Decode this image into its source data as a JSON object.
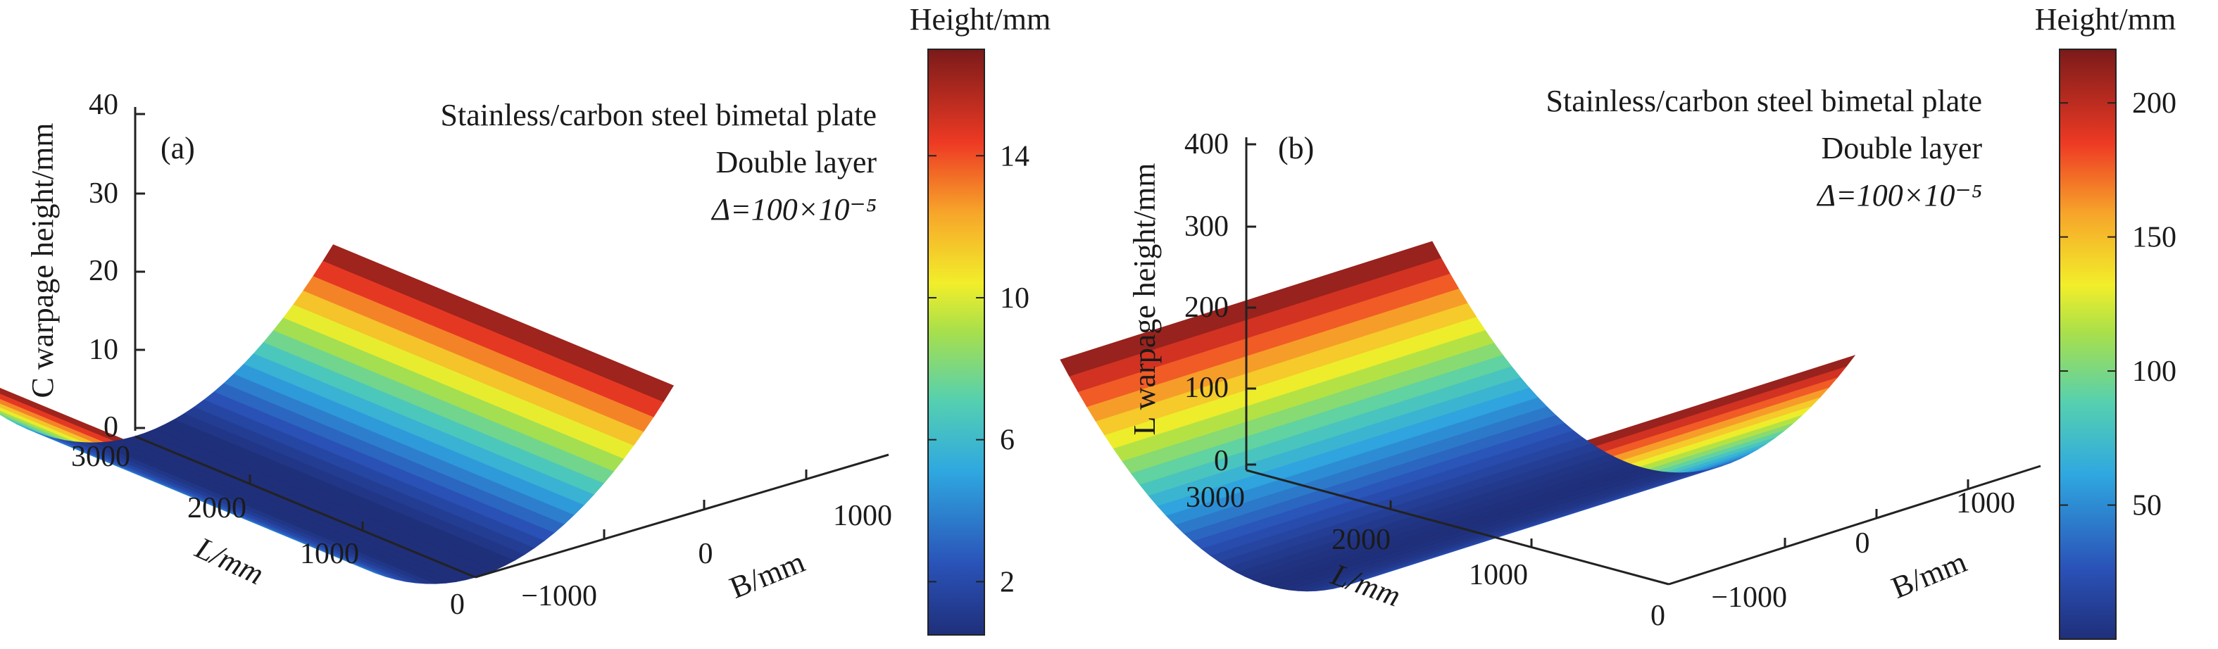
{
  "chart_data": [
    {
      "type": "surface3d",
      "panel_label": "(a)",
      "annotations": [
        "Stainless/carbon steel bimetal plate",
        "Double layer",
        "Δ=100×10⁻⁵"
      ],
      "zlabel": "C warpage height/mm",
      "xlabel": "L/mm",
      "ylabel": "B/mm",
      "zticks": [
        "0",
        "10",
        "20",
        "30",
        "40"
      ],
      "xticks": [
        "0",
        "1000",
        "2000",
        "3000"
      ],
      "yticks": [
        "−1000",
        "0",
        "1000"
      ],
      "zlim": [
        0,
        40
      ],
      "xlim": [
        0,
        3000
      ],
      "ylim": [
        -1200,
        1200
      ],
      "surface": {
        "curvature_direction": "B",
        "L_range": [
          0,
          3000
        ],
        "B_range": [
          -1150,
          1150
        ],
        "height_at_center": 0,
        "height_at_edges": 17
      },
      "colorbar": {
        "title": "Height/mm",
        "ticks": [
          "2",
          "6",
          "10",
          "14"
        ],
        "range": [
          0.5,
          17
        ],
        "colormap": "jet"
      }
    },
    {
      "type": "surface3d",
      "panel_label": "(b)",
      "annotations": [
        "Stainless/carbon steel bimetal plate",
        "Double layer",
        "Δ=100×10⁻⁵"
      ],
      "zlabel": "L warpage height/mm",
      "xlabel": "L/mm",
      "ylabel": "B/mm",
      "zticks": [
        "0",
        "100",
        "200",
        "300",
        "400"
      ],
      "xticks": [
        "0",
        "1000",
        "2000",
        "3000"
      ],
      "yticks": [
        "−1000",
        "0",
        "1000"
      ],
      "zlim": [
        0,
        400
      ],
      "xlim": [
        0,
        3000
      ],
      "ylim": [
        -1200,
        1200
      ],
      "surface": {
        "curvature_direction": "L",
        "L_range": [
          0,
          3000
        ],
        "B_range": [
          -1150,
          1150
        ],
        "height_at_center": 0,
        "height_at_edges": 220
      },
      "colorbar": {
        "title": "Height/mm",
        "ticks": [
          "50",
          "100",
          "150",
          "200"
        ],
        "range": [
          0,
          220
        ],
        "colormap": "jet"
      }
    }
  ]
}
